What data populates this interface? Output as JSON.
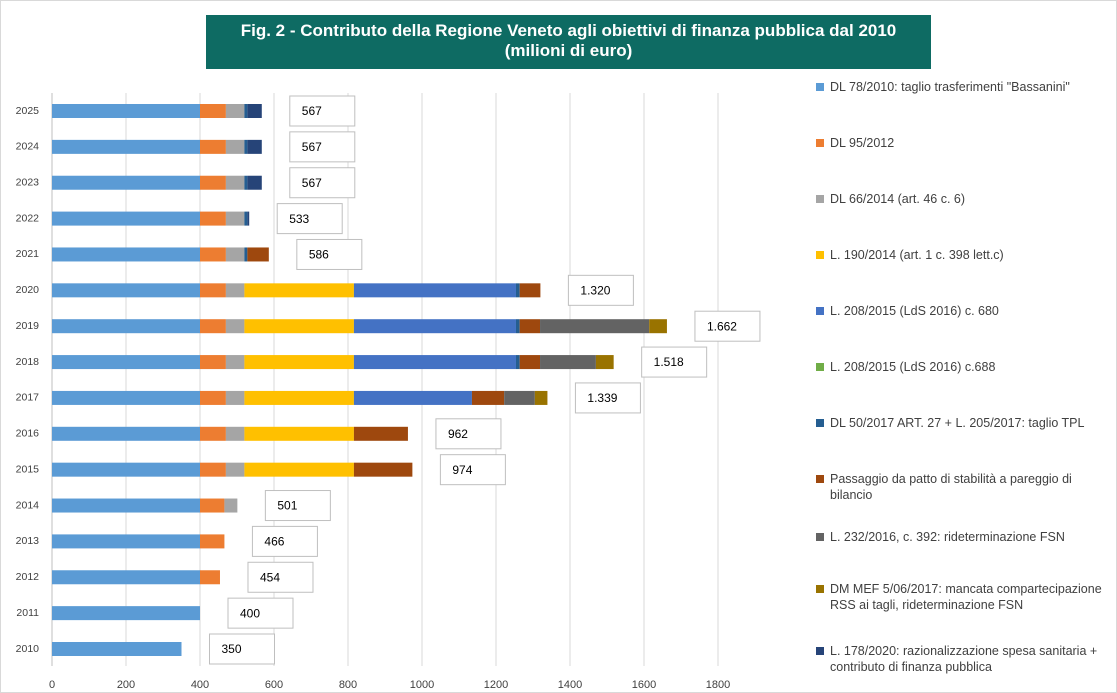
{
  "chart_data": {
    "type": "bar",
    "orientation": "horizontal",
    "stacked": true,
    "title": "Fig. 2 - Contributo della Regione Veneto agli obiettivi di finanza pubblica dal 2010",
    "subtitle": "(milioni di euro)",
    "categories": [
      "2010",
      "2011",
      "2012",
      "2013",
      "2014",
      "2015",
      "2016",
      "2017",
      "2018",
      "2019",
      "2020",
      "2021",
      "2022",
      "2023",
      "2024",
      "2025"
    ],
    "series": [
      {
        "name": "DL 78/2010: taglio trasferimenti \"Bassanini\"",
        "color": "#5b9bd5",
        "values": [
          350,
          400,
          400,
          400,
          400,
          400,
          400,
          400,
          400,
          400,
          400,
          400,
          400,
          400,
          400,
          400
        ]
      },
      {
        "name": "DL 95/2012",
        "color": "#ed7d31",
        "values": [
          0,
          0,
          54,
          66,
          66,
          70,
          70,
          70,
          70,
          70,
          70,
          70,
          70,
          70,
          70,
          70
        ]
      },
      {
        "name": "DL 66/2014 (art. 46 c. 6)",
        "color": "#a5a5a5",
        "values": [
          0,
          0,
          0,
          0,
          35,
          50,
          50,
          50,
          50,
          50,
          50,
          50,
          50,
          50,
          50,
          50
        ]
      },
      {
        "name": "L. 190/2014 (art. 1 c. 398 lett.c)",
        "color": "#ffc000",
        "values": [
          0,
          0,
          0,
          0,
          0,
          296,
          296,
          296,
          296,
          296,
          296,
          0,
          0,
          0,
          0,
          0
        ]
      },
      {
        "name": "L. 208/2015 (LdS 2016) c. 680",
        "color": "#4472c4",
        "values": [
          0,
          0,
          0,
          0,
          0,
          0,
          0,
          319,
          438,
          438,
          438,
          0,
          0,
          0,
          0,
          0
        ]
      },
      {
        "name": "L. 208/2015 (LdS 2016) c.688",
        "color": "#70ad47",
        "values": [
          0,
          0,
          0,
          0,
          0,
          0,
          0,
          0,
          0,
          0,
          0,
          0,
          0,
          0,
          0,
          0
        ]
      },
      {
        "name": "DL 50/2017 ART. 27 + L. 205/2017: taglio TPL",
        "color": "#255e91",
        "values": [
          0,
          0,
          0,
          0,
          0,
          0,
          0,
          0,
          10,
          10,
          10,
          8,
          8,
          8,
          8,
          8
        ]
      },
      {
        "name": "Passaggio da patto di stabilità a pareggio di bilancio",
        "color": "#9e480e",
        "values": [
          0,
          0,
          0,
          0,
          0,
          158,
          146,
          87,
          55,
          55,
          56,
          58,
          0,
          0,
          0,
          0
        ]
      },
      {
        "name": "L. 232/2016, c. 392: rideterminazione FSN",
        "color": "#636363",
        "values": [
          0,
          0,
          0,
          0,
          0,
          0,
          0,
          83,
          151,
          295,
          0,
          0,
          0,
          0,
          0,
          0
        ]
      },
      {
        "name": "DM MEF 5/06/2017: mancata compartecipazione RSS ai tagli, rideterminazione FSN",
        "color": "#997300",
        "values": [
          0,
          0,
          0,
          0,
          0,
          0,
          0,
          34,
          48,
          48,
          0,
          0,
          0,
          0,
          0,
          0
        ]
      },
      {
        "name": "L. 178/2020: razionalizzazione spesa sanitaria + contributo di finanza pubblica",
        "color": "#264478",
        "values": [
          0,
          0,
          0,
          0,
          0,
          0,
          0,
          0,
          0,
          0,
          0,
          0,
          5,
          39,
          39,
          39
        ]
      }
    ],
    "totals": {
      "values": [
        350,
        400,
        454,
        466,
        501,
        974,
        962,
        1339,
        1518,
        1662,
        1320,
        586,
        533,
        567,
        567,
        567
      ],
      "value_labels": [
        "350",
        "400",
        "454",
        "466",
        "501",
        "974",
        "962",
        "1.339",
        "1.518",
        "1.662",
        "1.320",
        "586",
        "533",
        "567",
        "567",
        "567"
      ]
    },
    "xlim": [
      0,
      1800
    ],
    "xticks": [
      0,
      200,
      400,
      600,
      800,
      1000,
      1200,
      1400,
      1600,
      1800
    ],
    "grid": true
  }
}
